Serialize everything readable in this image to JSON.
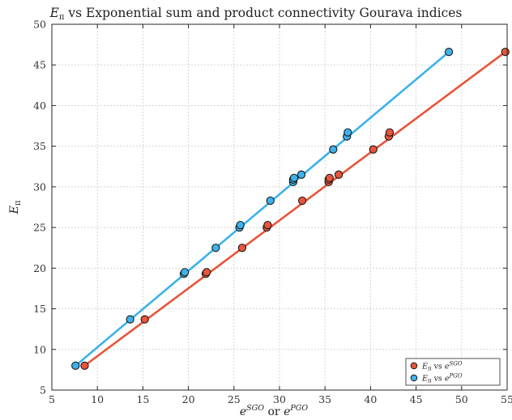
{
  "chart_data": {
    "type": "scatter",
    "title": {
      "math": "E",
      "math_sub": "π",
      "rest": " vs Exponential sum and product connectivity Gourava indices"
    },
    "xlabel": {
      "p1": "e",
      "sup1": "SGO",
      "mid": " or ",
      "p2": "e",
      "sup2": "PGO"
    },
    "ylabel": {
      "main": "E",
      "sub": "π"
    },
    "xlim": [
      5,
      55
    ],
    "ylim": [
      5,
      50
    ],
    "xticks": [
      5,
      10,
      15,
      20,
      25,
      30,
      35,
      40,
      45,
      50,
      55
    ],
    "yticks": [
      5,
      10,
      15,
      20,
      25,
      30,
      35,
      40,
      45,
      50
    ],
    "grid": true,
    "legend_position": "bottom-right",
    "series": [
      {
        "label": {
          "main": "E",
          "sub": "π",
          "mid": " vs ",
          "p": "e",
          "sup": "SGO"
        },
        "color": "#e8553a",
        "points": [
          [
            8.6,
            8.0
          ],
          [
            15.2,
            13.7
          ],
          [
            21.9,
            19.3
          ],
          [
            22.0,
            19.5
          ],
          [
            25.9,
            22.5
          ],
          [
            28.6,
            25.0
          ],
          [
            28.7,
            25.3
          ],
          [
            32.5,
            28.3
          ],
          [
            35.4,
            30.6
          ],
          [
            35.4,
            30.9
          ],
          [
            35.5,
            31.1
          ],
          [
            36.5,
            31.5
          ],
          [
            40.3,
            34.6
          ],
          [
            42.0,
            36.2
          ],
          [
            42.1,
            36.7
          ],
          [
            54.8,
            46.6
          ]
        ],
        "fit_line": [
          [
            8.6,
            8.0
          ],
          [
            54.8,
            46.6
          ]
        ]
      },
      {
        "label": {
          "main": "E",
          "sub": "π",
          "mid": " vs ",
          "p": "e",
          "sup": "PGO"
        },
        "color": "#3db2ea",
        "points": [
          [
            7.6,
            8.0
          ],
          [
            13.6,
            13.7
          ],
          [
            19.5,
            19.3
          ],
          [
            19.6,
            19.5
          ],
          [
            23.0,
            22.5
          ],
          [
            25.6,
            25.0
          ],
          [
            25.7,
            25.3
          ],
          [
            29.0,
            28.3
          ],
          [
            31.5,
            30.6
          ],
          [
            31.5,
            30.9
          ],
          [
            31.6,
            31.1
          ],
          [
            32.4,
            31.5
          ],
          [
            35.9,
            34.6
          ],
          [
            37.4,
            36.2
          ],
          [
            37.5,
            36.7
          ],
          [
            48.6,
            46.6
          ]
        ],
        "fit_line": [
          [
            7.6,
            8.0
          ],
          [
            48.6,
            46.6
          ]
        ]
      }
    ]
  }
}
